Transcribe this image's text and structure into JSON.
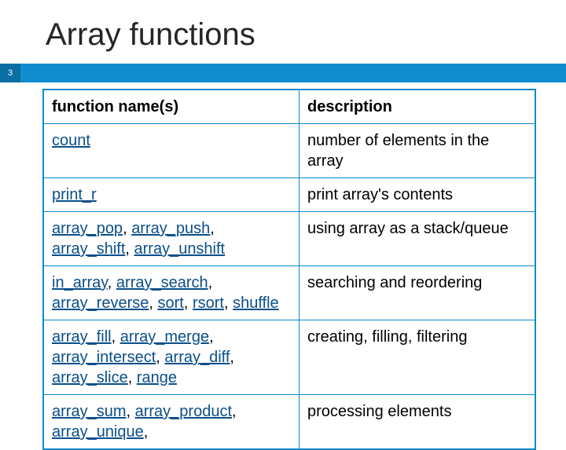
{
  "title": "Array functions",
  "page": "3",
  "colors": {
    "band": "#0f8dce",
    "band_dark": "#0a6ea3",
    "table_border": "#1088cb",
    "link": "#0b4f8a",
    "text": "#000000",
    "title_text": "#262626",
    "background": "#ffffff"
  },
  "typography": {
    "title_fontsize": 40,
    "cell_fontsize": 20,
    "header_fontsize": 20,
    "pagenum_fontsize": 11,
    "font_family": "Arial"
  },
  "table": {
    "columns": [
      "function name(s)",
      "description"
    ],
    "column_widths": [
      "52%",
      "48%"
    ],
    "rows": [
      {
        "functions": [
          "count"
        ],
        "description": "number of elements in the array"
      },
      {
        "functions": [
          "print_r"
        ],
        "description": "print array's contents"
      },
      {
        "functions": [
          "array_pop",
          "array_push",
          "array_shift",
          "array_unshift"
        ],
        "description": "using array as a stack/queue"
      },
      {
        "functions": [
          "in_array",
          "array_search",
          "array_reverse",
          "sort",
          "rsort",
          "shuffle"
        ],
        "description": "searching and reordering"
      },
      {
        "functions": [
          "array_fill",
          "array_merge",
          "array_intersect",
          "array_diff",
          "array_slice",
          "range"
        ],
        "description": "creating, filling, filtering"
      },
      {
        "functions": [
          "array_sum",
          "array_product",
          "array_unique"
        ],
        "description": "processing elements",
        "trailing_comma": true
      }
    ]
  }
}
